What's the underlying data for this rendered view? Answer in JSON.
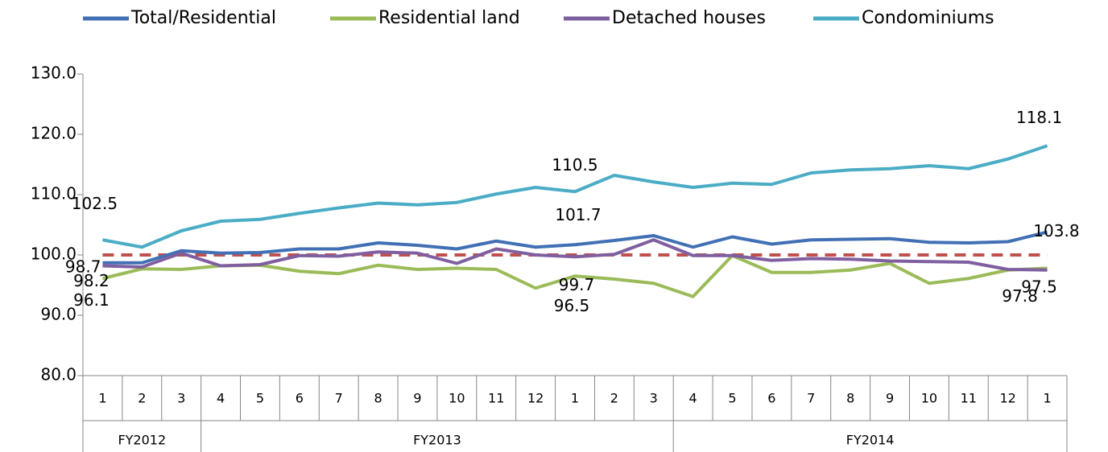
{
  "chart_data": {
    "type": "line",
    "categories": [
      "1",
      "2",
      "3",
      "4",
      "5",
      "6",
      "7",
      "8",
      "9",
      "10",
      "11",
      "12",
      "1",
      "2",
      "3",
      "4",
      "5",
      "6",
      "7",
      "8",
      "9",
      "10",
      "11",
      "12",
      "1"
    ],
    "category_groups": [
      "FY2012",
      "FY2012",
      "FY2012",
      "FY2013",
      "FY2013",
      "FY2013",
      "FY2013",
      "FY2013",
      "FY2013",
      "FY2013",
      "FY2013",
      "FY2013",
      "FY2013",
      "FY2013",
      "FY2013",
      "FY2014",
      "FY2014",
      "FY2014",
      "FY2014",
      "FY2014",
      "FY2014",
      "FY2014",
      "FY2014",
      "FY2014",
      "FY2014"
    ],
    "series": [
      {
        "name": "Total/Residential",
        "color": "#4170b4",
        "values": [
          98.7,
          98.7,
          100.7,
          100.3,
          100.4,
          101.0,
          101.0,
          102.0,
          101.6,
          101.0,
          102.3,
          101.3,
          101.7,
          102.4,
          103.2,
          101.3,
          103.0,
          101.8,
          102.5,
          102.6,
          102.7,
          102.1,
          102.0,
          102.2,
          103.8
        ],
        "value_labels": [
          "98.7",
          null,
          null,
          null,
          null,
          null,
          null,
          null,
          null,
          null,
          null,
          null,
          "101.7",
          null,
          null,
          null,
          null,
          null,
          null,
          null,
          null,
          null,
          null,
          null,
          "103.8"
        ]
      },
      {
        "name": "Residential land",
        "color": "#9bbb59",
        "values": [
          96.1,
          97.7,
          97.6,
          98.2,
          98.3,
          97.3,
          96.9,
          98.3,
          97.6,
          97.8,
          97.6,
          94.5,
          96.5,
          96.0,
          95.3,
          93.1,
          99.9,
          97.1,
          97.1,
          97.5,
          98.6,
          95.3,
          96.1,
          97.5,
          97.8
        ],
        "value_labels": [
          "96.1",
          null,
          null,
          null,
          null,
          null,
          null,
          null,
          null,
          null,
          null,
          null,
          "96.5",
          null,
          null,
          null,
          null,
          null,
          null,
          null,
          null,
          null,
          null,
          null,
          "97.8"
        ]
      },
      {
        "name": "Detached houses",
        "color": "#7f5fa0",
        "values": [
          98.2,
          98.0,
          100.3,
          98.2,
          98.4,
          99.9,
          99.8,
          100.5,
          100.3,
          98.6,
          101.0,
          100.0,
          99.7,
          100.1,
          102.5,
          99.9,
          99.9,
          99.1,
          99.4,
          99.3,
          99.0,
          98.9,
          98.8,
          97.6,
          97.5
        ],
        "value_labels": [
          "98.2",
          null,
          null,
          null,
          null,
          null,
          null,
          null,
          null,
          null,
          null,
          null,
          "99.7",
          null,
          null,
          null,
          null,
          null,
          null,
          null,
          null,
          null,
          null,
          null,
          "97.5"
        ]
      },
      {
        "name": "Condominiums",
        "color": "#4bacc6",
        "values": [
          102.5,
          101.3,
          104.0,
          105.6,
          105.9,
          106.9,
          107.8,
          108.6,
          108.3,
          108.7,
          110.1,
          111.2,
          110.5,
          113.2,
          112.1,
          111.2,
          111.9,
          111.7,
          113.6,
          114.1,
          114.3,
          114.8,
          114.3,
          115.9,
          118.1
        ],
        "value_labels": [
          "102.5",
          null,
          null,
          null,
          null,
          null,
          null,
          null,
          null,
          null,
          null,
          null,
          "110.5",
          null,
          null,
          null,
          null,
          null,
          null,
          null,
          null,
          null,
          null,
          null,
          "118.1"
        ]
      }
    ],
    "reference_line": {
      "value": 100,
      "color": "#c0504d"
    },
    "ylim": [
      80,
      130
    ],
    "yticks": [
      {
        "value": 80,
        "label": "80.0"
      },
      {
        "value": 90,
        "label": "90.0"
      },
      {
        "value": 100,
        "label": "100.0"
      },
      {
        "value": 110,
        "label": "110.0"
      },
      {
        "value": 120,
        "label": "120.0"
      },
      {
        "value": 130,
        "label": "130.0"
      }
    ],
    "legend": "top",
    "grid": false
  }
}
